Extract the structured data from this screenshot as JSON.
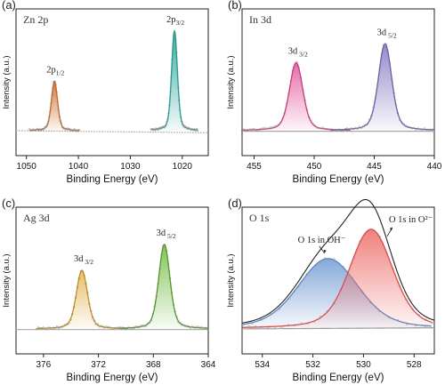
{
  "chart_data": [
    {
      "panel": "(a)",
      "label": "Zn 2p",
      "type": "line",
      "xlabel": "Binding Energy (eV)",
      "ylabel": "Intensity (a.u.)",
      "xlim": [
        1052,
        1015
      ],
      "xticks": [
        1050,
        1040,
        1030,
        1020
      ],
      "peaks": [
        {
          "label_main": "2p",
          "label_sub": "1/2",
          "center": 1044.6,
          "height": 0.42,
          "width": 0.8,
          "color": "#c8641e",
          "fill": "#c8641e"
        },
        {
          "label_main": "2p",
          "label_sub": "3/2",
          "center": 1021.5,
          "height": 0.85,
          "width": 0.75,
          "color": "#1a9a8e",
          "fill": "#1a9a8e"
        }
      ],
      "background_color": "#b5b5b5"
    },
    {
      "panel": "(b)",
      "label": "In 3d",
      "type": "line",
      "xlabel": "Binding Energy (eV)",
      "ylabel": "Intensity (a.u.)",
      "xlim": [
        456,
        440
      ],
      "xticks": [
        455,
        450,
        445,
        440
      ],
      "peaks": [
        {
          "label_main": "3d",
          "label_sub": "3/2",
          "center": 451.5,
          "height": 0.58,
          "width": 0.75,
          "color": "#d6307a",
          "fill": "#e0559a"
        },
        {
          "label_main": "3d",
          "label_sub": "5/2",
          "center": 444.1,
          "height": 0.74,
          "width": 0.75,
          "color": "#6a5aa8",
          "fill": "#8275c0"
        }
      ],
      "background_color": "#a8a8a8"
    },
    {
      "panel": "(c)",
      "label": "Ag 3d",
      "type": "line",
      "xlabel": "Binding Energy (eV)",
      "ylabel": "Intensity (a.u.)",
      "xlim": [
        378,
        364
      ],
      "xticks": [
        376,
        372,
        368,
        364
      ],
      "peaks": [
        {
          "label_main": "3d",
          "label_sub": "3/2",
          "center": 373.2,
          "height": 0.5,
          "width": 0.55,
          "color": "#c98d1a",
          "fill": "#e3b34f"
        },
        {
          "label_main": "3d",
          "label_sub": "5/2",
          "center": 367.2,
          "height": 0.72,
          "width": 0.55,
          "color": "#4e9628",
          "fill": "#6fb83a"
        }
      ],
      "background_color": "#b0b0b0"
    },
    {
      "panel": "(d)",
      "label": "O 1s",
      "type": "line",
      "xlabel": "Binding Energy (eV)",
      "ylabel": "Intensity (a.u.)",
      "xlim": [
        534.8,
        527.2
      ],
      "xticks": [
        534,
        532,
        530,
        528
      ],
      "components": [
        {
          "name": "O 1s in OH⁻",
          "center": 531.4,
          "height": 0.6,
          "width": 1.6,
          "color": "#5b86c4",
          "fill": "#6f98d2"
        },
        {
          "name": "O 1s in O²⁻",
          "center": 529.7,
          "height": 0.85,
          "width": 1.15,
          "color": "#dc4a4a",
          "fill": "#ec6b66"
        }
      ],
      "envelope_color": "#222222",
      "background_color": "#a0a0a0"
    }
  ]
}
